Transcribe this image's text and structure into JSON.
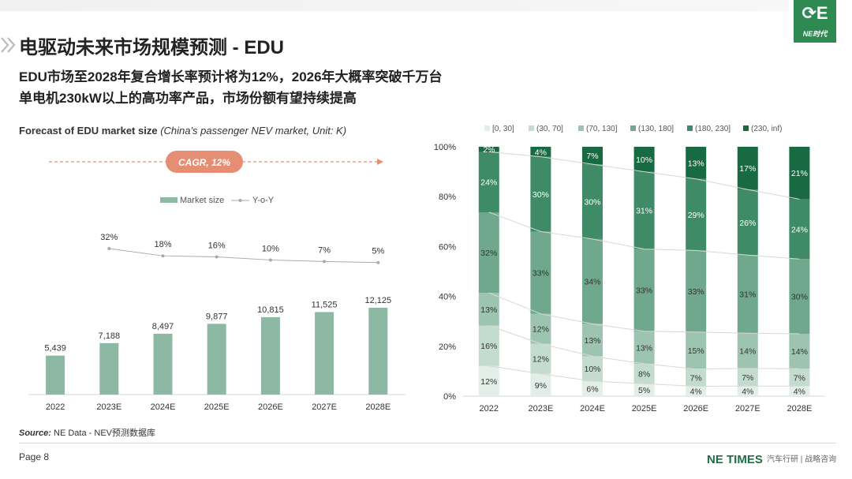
{
  "header": {
    "title": "电驱动未来市场规模预测 - EDU",
    "subtitle_line1": "EDU市场至2028年复合增长率预计将为12%，2026年大概率突破千万台",
    "subtitle_line2": "单电机230kW以上的高功率产品，市场份额有望持续提高",
    "logo_text": "NE时代"
  },
  "left_panel": {
    "title_bold": "Forecast of EDU market size",
    "title_italic": "(China's passenger NEV market, Unit: K)"
  },
  "footer": {
    "source_label": "Source:",
    "source_text": "NE Data - NEV预测数据库",
    "page": "Page 8",
    "brand": "NE TIMES",
    "brand_sub": "汽车行研 | 战略咨询"
  },
  "chart_data": [
    {
      "type": "bar",
      "title": "",
      "categories": [
        "2022",
        "2023E",
        "2024E",
        "2025E",
        "2026E",
        "2027E",
        "2028E"
      ],
      "series": [
        {
          "name": "Market size",
          "type": "bar",
          "values": [
            5439,
            7188,
            8497,
            9877,
            10815,
            11525,
            12125
          ],
          "labels": [
            "5,439",
            "7,188",
            "8,497",
            "9,877",
            "10,815",
            "11,525",
            "12,125"
          ]
        },
        {
          "name": "Y-o-Y",
          "type": "line",
          "values": [
            null,
            32,
            18,
            16,
            10,
            7,
            5
          ],
          "labels": [
            "",
            "32%",
            "18%",
            "16%",
            "10%",
            "7%",
            "5%"
          ]
        }
      ],
      "annotation": "CAGR, 12%",
      "colors": {
        "bar": "#8db8a4",
        "line": "#aaaaaa",
        "cagr": "#e58e73"
      },
      "legend": "top"
    },
    {
      "type": "bar",
      "stacked": true,
      "percent": true,
      "title": "",
      "categories": [
        "2022",
        "2023E",
        "2024E",
        "2025E",
        "2026E",
        "2027E",
        "2028E"
      ],
      "ylim": [
        0,
        100
      ],
      "yticks": [
        "0%",
        "20%",
        "40%",
        "60%",
        "80%",
        "100%"
      ],
      "series": [
        {
          "name": "[0, 30]",
          "values": [
            12,
            9,
            6,
            5,
            4,
            4,
            4
          ],
          "color": "#e3eee8"
        },
        {
          "name": "(30, 70]",
          "values": [
            16,
            12,
            10,
            8,
            7,
            7,
            7
          ],
          "color": "#c4dbcf"
        },
        {
          "name": "(70, 130]",
          "values": [
            13,
            12,
            13,
            13,
            15,
            14,
            14
          ],
          "color": "#9dc4b0"
        },
        {
          "name": "(130, 180]",
          "values": [
            32,
            33,
            34,
            33,
            33,
            31,
            30
          ],
          "color": "#6fa88c"
        },
        {
          "name": "(180, 230]",
          "values": [
            24,
            30,
            30,
            31,
            29,
            26,
            24
          ],
          "color": "#3f8a67"
        },
        {
          "name": "(230, inf)",
          "values": [
            2,
            4,
            7,
            10,
            13,
            17,
            21
          ],
          "color": "#186a43"
        }
      ],
      "legend": "top"
    }
  ]
}
